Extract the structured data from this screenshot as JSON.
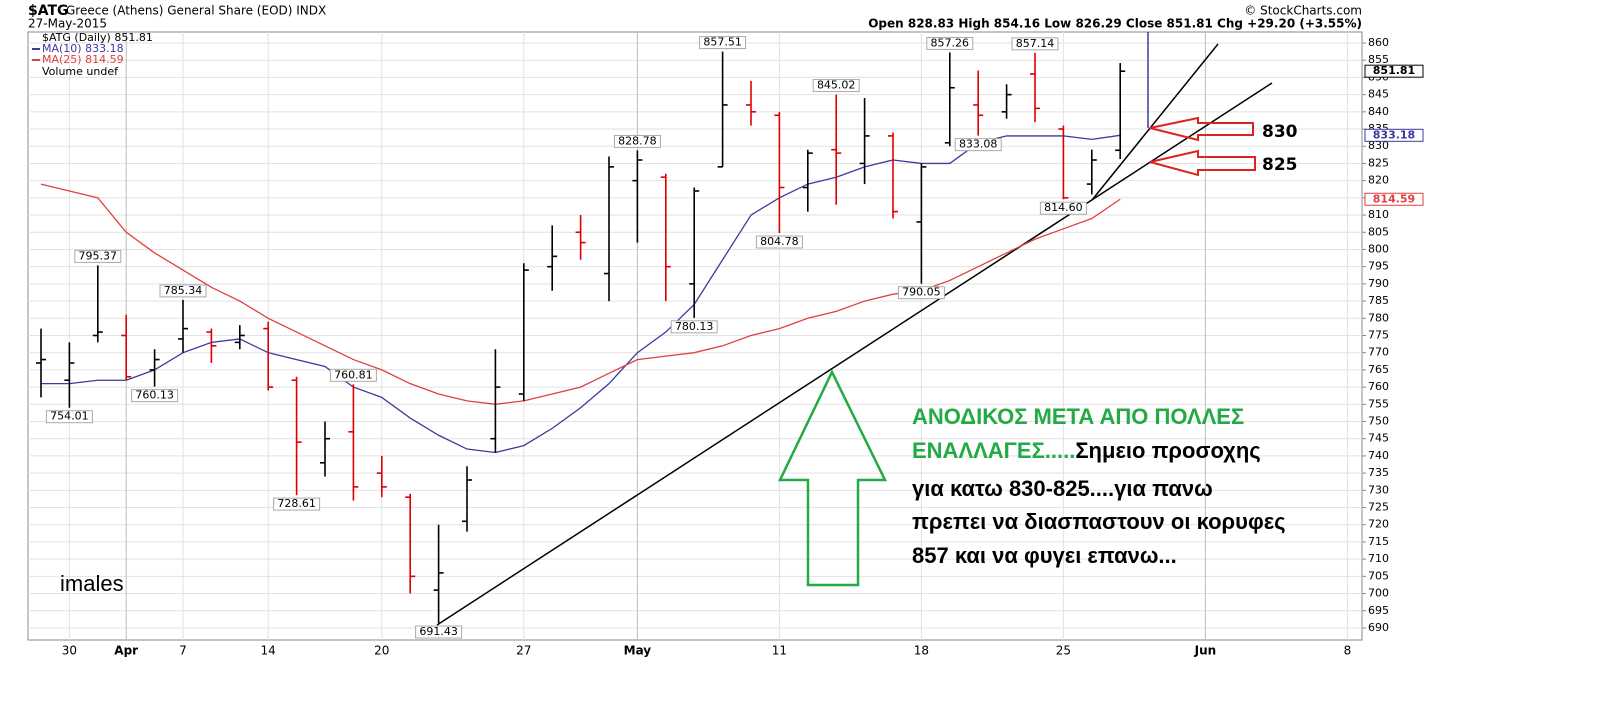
{
  "chart_data": {
    "type": "ohlc",
    "title": "$ATG",
    "subtitle": "Greece (Athens) General Share (EOD) INDX",
    "date": "27-May-2015",
    "stats": "Open 828.83  High 854.16  Low 826.29  Close 851.81  Chg +29.20 (+3.55%)",
    "credit": "© StockCharts.com",
    "price_label": "$ATG (Daily) 851.81",
    "volume_label": "Volume undef",
    "categories": [
      null,
      "30",
      null,
      "Apr",
      null,
      "7",
      null,
      null,
      "14",
      null,
      null,
      null,
      "20",
      null,
      null,
      null,
      null,
      "27",
      null,
      null,
      null,
      "May",
      null,
      null,
      null,
      null,
      "11",
      null,
      null,
      null,
      null,
      "18",
      null,
      null,
      null,
      null,
      "25",
      null,
      null,
      null,
      null,
      "Jun",
      null,
      null,
      null,
      null,
      "8"
    ],
    "open": [
      767,
      762,
      775,
      775,
      765,
      774,
      776,
      773,
      777,
      762,
      738,
      747,
      735,
      728,
      701,
      721,
      745,
      758,
      795,
      805,
      793,
      820,
      821,
      790,
      824,
      842,
      839,
      818,
      829,
      825,
      833,
      808,
      831,
      842,
      840,
      851,
      835,
      819,
      828.83,
      null,
      null,
      null,
      null,
      null,
      null,
      null,
      null
    ],
    "high": [
      777,
      773,
      795.37,
      781,
      771,
      785.34,
      777,
      778,
      779,
      763,
      750,
      760.81,
      740,
      729,
      720,
      737,
      771,
      796,
      807,
      810,
      827,
      828.78,
      822,
      818,
      857.51,
      849,
      840,
      829,
      845.02,
      844,
      834,
      825,
      857.26,
      852,
      848,
      857.14,
      836,
      829,
      854.16,
      null,
      null,
      null,
      null,
      null,
      null,
      null,
      null
    ],
    "low": [
      757,
      754.01,
      773,
      762,
      760.13,
      770,
      767,
      771,
      759,
      728.61,
      734,
      727,
      728,
      700,
      691.43,
      718,
      741,
      756,
      788,
      797,
      785,
      802,
      785,
      780.13,
      824,
      836,
      804.78,
      811,
      813,
      819,
      809,
      790.05,
      830,
      833.08,
      838,
      837,
      814.6,
      816,
      826.29,
      null,
      null,
      null,
      null,
      null,
      null,
      null,
      null
    ],
    "close": [
      768,
      767,
      776,
      763,
      768,
      777,
      772,
      775,
      760,
      744,
      745,
      731,
      731,
      705,
      706,
      733,
      760,
      794,
      798,
      802,
      824,
      826,
      795,
      817,
      842,
      840,
      818,
      828,
      828,
      833,
      811,
      824,
      847,
      839,
      845,
      841,
      815,
      826,
      851.81,
      null,
      null,
      null,
      null,
      null,
      null,
      null,
      null
    ],
    "high_value_labels": [
      null,
      null,
      "795.37",
      null,
      null,
      "785.34",
      null,
      null,
      null,
      null,
      null,
      "760.81",
      null,
      null,
      null,
      null,
      null,
      null,
      null,
      null,
      null,
      "828.78",
      null,
      null,
      "857.51",
      null,
      null,
      null,
      "845.02",
      null,
      null,
      null,
      "857.26",
      null,
      null,
      "857.14",
      null,
      null,
      null,
      null,
      null,
      null,
      null,
      null,
      null,
      null,
      null
    ],
    "low_value_labels": [
      null,
      "754.01",
      null,
      null,
      "760.13",
      null,
      null,
      null,
      null,
      "728.61",
      null,
      null,
      null,
      null,
      "691.43",
      null,
      null,
      null,
      null,
      null,
      null,
      null,
      null,
      "780.13",
      null,
      null,
      "804.78",
      null,
      null,
      null,
      null,
      "790.05",
      null,
      "833.08",
      null,
      null,
      "814.60",
      null,
      null,
      null,
      null,
      null,
      null,
      null,
      null,
      null,
      null
    ],
    "up_color": "#000000",
    "down_color": "#dd0000",
    "series": [
      {
        "name": "MA(10) 833.18",
        "color": "#3a3aa0",
        "values": [
          761,
          761,
          762,
          762,
          765,
          770,
          773,
          774,
          770,
          768,
          766,
          760,
          757,
          751,
          746,
          742,
          741,
          743,
          748,
          754,
          761,
          770,
          776,
          784,
          797,
          810,
          815,
          819,
          821,
          824,
          826,
          825,
          825,
          831,
          833,
          833,
          833,
          832,
          833.18,
          null,
          null,
          null,
          null,
          null,
          null,
          null,
          null
        ]
      },
      {
        "name": "MA(25) 814.59",
        "color": "#e04040",
        "values": [
          819,
          817,
          815,
          805,
          799,
          794,
          789,
          785,
          780,
          776,
          772,
          768,
          765,
          761,
          758,
          756,
          755,
          756,
          758,
          760,
          764,
          768,
          769,
          770,
          772,
          775,
          777,
          780,
          782,
          785,
          787,
          788,
          791,
          795,
          799,
          803,
          806,
          809,
          814.59,
          null,
          null,
          null,
          null,
          null,
          null,
          null,
          null
        ]
      }
    ],
    "ylim": [
      686.5,
      863.2
    ],
    "yticks": [
      690,
      695,
      700,
      705,
      710,
      715,
      720,
      725,
      730,
      735,
      740,
      745,
      750,
      755,
      760,
      765,
      770,
      775,
      780,
      785,
      790,
      795,
      800,
      805,
      810,
      815,
      820,
      825,
      830,
      835,
      840,
      845,
      850,
      855,
      860
    ],
    "grid": true,
    "annotations": {
      "level_high": "830",
      "level_low": "825",
      "author": "imales",
      "green_lines": [
        "ΑΝΟΔΙΚΟΣ ΜΕΤΑ ΑΠΟ ΠΟΛΛΕΣ",
        "ΕΝΑΛΛΑΓΕΣ....."
      ],
      "black_lines": [
        "Σημειο προσοχης",
        "για κατω 830-825....για πανω",
        "πρεπει να διασπαστουν οι κορυφες",
        "857 και να φυγει επανω..."
      ]
    }
  }
}
